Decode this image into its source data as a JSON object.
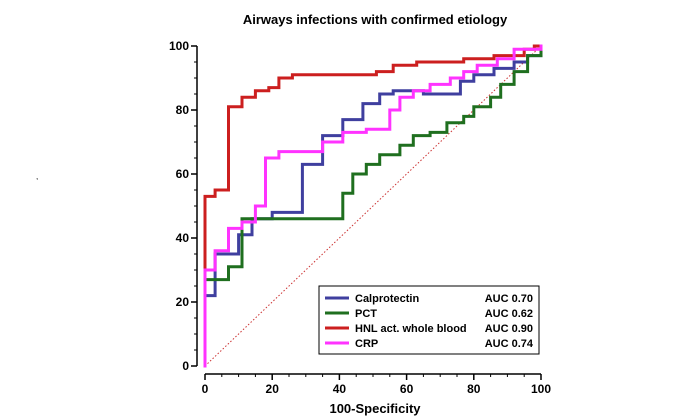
{
  "chart_data": {
    "type": "line",
    "title": "Airways infections with confirmed etiology",
    "xlabel": "100-Specificity",
    "ylabel": "",
    "xlim": [
      0,
      100
    ],
    "ylim": [
      0,
      100
    ],
    "x_ticks": [
      "0",
      "20",
      "40",
      "60",
      "80",
      "100"
    ],
    "y_ticks": [
      "0",
      "20",
      "40",
      "60",
      "80",
      "100"
    ],
    "grid": false,
    "legend_position": "bottom-right",
    "reference_line": {
      "from": [
        0,
        0
      ],
      "to": [
        100,
        100
      ],
      "color": "#cc3333",
      "style": "dotted"
    },
    "series": [
      {
        "name": "Calprotectin",
        "auc_label": "AUC 0.70",
        "color": "#3f3f9f",
        "points": [
          [
            0,
            0
          ],
          [
            0,
            22
          ],
          [
            3,
            22
          ],
          [
            3,
            35
          ],
          [
            10,
            35
          ],
          [
            10,
            41
          ],
          [
            14,
            41
          ],
          [
            14,
            46
          ],
          [
            20,
            46
          ],
          [
            20,
            48
          ],
          [
            29,
            48
          ],
          [
            29,
            63
          ],
          [
            35,
            63
          ],
          [
            35,
            72
          ],
          [
            41,
            72
          ],
          [
            41,
            77
          ],
          [
            47,
            77
          ],
          [
            47,
            82
          ],
          [
            52,
            82
          ],
          [
            52,
            85
          ],
          [
            56,
            85
          ],
          [
            56,
            86
          ],
          [
            65,
            86
          ],
          [
            65,
            85
          ],
          [
            76,
            85
          ],
          [
            76,
            89
          ],
          [
            80,
            89
          ],
          [
            80,
            91
          ],
          [
            86,
            91
          ],
          [
            86,
            93
          ],
          [
            92,
            93
          ],
          [
            92,
            95
          ],
          [
            96,
            95
          ],
          [
            96,
            97
          ],
          [
            100,
            97
          ],
          [
            100,
            100
          ]
        ]
      },
      {
        "name": "PCT",
        "auc_label": "AUC 0.62",
        "color": "#1f6f1f",
        "points": [
          [
            0,
            0
          ],
          [
            0,
            27
          ],
          [
            7,
            27
          ],
          [
            7,
            31
          ],
          [
            11,
            31
          ],
          [
            11,
            46
          ],
          [
            41,
            46
          ],
          [
            41,
            54
          ],
          [
            44,
            54
          ],
          [
            44,
            60
          ],
          [
            48,
            60
          ],
          [
            48,
            63
          ],
          [
            52,
            63
          ],
          [
            52,
            66
          ],
          [
            58,
            66
          ],
          [
            58,
            69
          ],
          [
            62,
            69
          ],
          [
            62,
            72
          ],
          [
            67,
            72
          ],
          [
            67,
            73
          ],
          [
            72,
            73
          ],
          [
            72,
            76
          ],
          [
            77,
            76
          ],
          [
            77,
            78
          ],
          [
            80,
            78
          ],
          [
            80,
            81
          ],
          [
            85,
            81
          ],
          [
            85,
            84
          ],
          [
            88,
            84
          ],
          [
            88,
            88
          ],
          [
            92,
            88
          ],
          [
            92,
            92
          ],
          [
            96,
            92
          ],
          [
            96,
            97
          ],
          [
            100,
            97
          ],
          [
            100,
            100
          ]
        ]
      },
      {
        "name": "HNL act. whole blood",
        "auc_label": "AUC 0.90",
        "color": "#cc1f1f",
        "points": [
          [
            0,
            0
          ],
          [
            0,
            53
          ],
          [
            3,
            53
          ],
          [
            3,
            55
          ],
          [
            7,
            55
          ],
          [
            7,
            81
          ],
          [
            11,
            81
          ],
          [
            11,
            84
          ],
          [
            15,
            84
          ],
          [
            15,
            86
          ],
          [
            19,
            86
          ],
          [
            19,
            87
          ],
          [
            22,
            87
          ],
          [
            22,
            90
          ],
          [
            26,
            90
          ],
          [
            26,
            91
          ],
          [
            51,
            91
          ],
          [
            51,
            92
          ],
          [
            56,
            92
          ],
          [
            56,
            94
          ],
          [
            63,
            94
          ],
          [
            63,
            95
          ],
          [
            77,
            95
          ],
          [
            77,
            96
          ],
          [
            86,
            96
          ],
          [
            86,
            97
          ],
          [
            95,
            97
          ],
          [
            95,
            99
          ],
          [
            98,
            99
          ],
          [
            98,
            100
          ],
          [
            100,
            100
          ]
        ]
      },
      {
        "name": "CRP",
        "auc_label": "AUC 0.74",
        "color": "#ff33ff",
        "points": [
          [
            0,
            0
          ],
          [
            0,
            30
          ],
          [
            3,
            30
          ],
          [
            3,
            36
          ],
          [
            7,
            36
          ],
          [
            7,
            43
          ],
          [
            11,
            43
          ],
          [
            11,
            45
          ],
          [
            15,
            45
          ],
          [
            15,
            50
          ],
          [
            18,
            50
          ],
          [
            18,
            65
          ],
          [
            22,
            65
          ],
          [
            22,
            67
          ],
          [
            35,
            67
          ],
          [
            35,
            70
          ],
          [
            41,
            70
          ],
          [
            41,
            73
          ],
          [
            48,
            73
          ],
          [
            48,
            74
          ],
          [
            55,
            74
          ],
          [
            55,
            80
          ],
          [
            58,
            80
          ],
          [
            58,
            84
          ],
          [
            62,
            84
          ],
          [
            62,
            86
          ],
          [
            67,
            86
          ],
          [
            67,
            88
          ],
          [
            73,
            88
          ],
          [
            73,
            90
          ],
          [
            77,
            90
          ],
          [
            77,
            92
          ],
          [
            81,
            92
          ],
          [
            81,
            94
          ],
          [
            87,
            94
          ],
          [
            87,
            96
          ],
          [
            92,
            96
          ],
          [
            92,
            99
          ],
          [
            100,
            99
          ],
          [
            100,
            100
          ]
        ]
      }
    ]
  },
  "annotations": {
    "stray_mark": ","
  }
}
